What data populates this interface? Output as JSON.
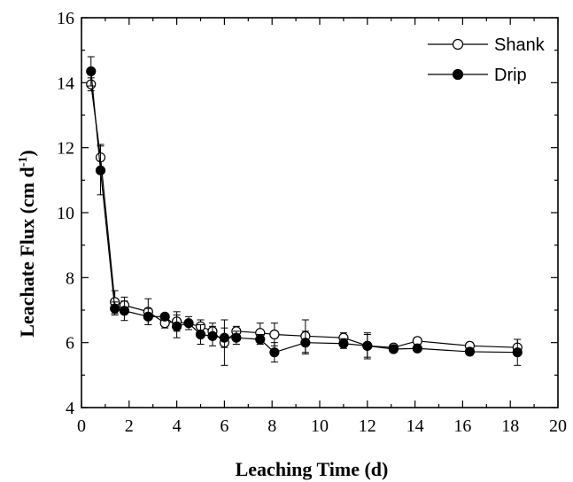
{
  "chart_data": {
    "type": "line",
    "xlabel": "Leaching Time (d)",
    "ylabel": "Leachate Flux (cm d",
    "ylabel_sup": "-1",
    "ylabel_close": ")",
    "xlim": [
      0,
      20
    ],
    "ylim": [
      4,
      16
    ],
    "xticks": [
      0,
      2,
      4,
      6,
      8,
      10,
      12,
      14,
      16,
      18,
      20
    ],
    "yticks": [
      4,
      6,
      8,
      10,
      12,
      14,
      16
    ],
    "grid": false,
    "legend_position": "top-right",
    "series": [
      {
        "name": "Shank",
        "marker": "open-circle",
        "points": [
          {
            "x": 0.4,
            "y": 13.95,
            "err": 0.2
          },
          {
            "x": 0.8,
            "y": 11.7,
            "err": 0.4
          },
          {
            "x": 1.4,
            "y": 7.25,
            "err": 0.35
          },
          {
            "x": 1.8,
            "y": 7.15,
            "err": 0.25
          },
          {
            "x": 2.8,
            "y": 6.95,
            "err": 0.4
          },
          {
            "x": 3.5,
            "y": 6.6,
            "err": 0.15
          },
          {
            "x": 4.0,
            "y": 6.65,
            "err": 0.3
          },
          {
            "x": 5.0,
            "y": 6.5,
            "err": 0.2
          },
          {
            "x": 5.5,
            "y": 6.35,
            "err": 0.25
          },
          {
            "x": 6.0,
            "y": 6.0,
            "err": 0.7
          },
          {
            "x": 6.5,
            "y": 6.35,
            "err": 0.15
          },
          {
            "x": 7.5,
            "y": 6.3,
            "err": 0.3
          },
          {
            "x": 8.1,
            "y": 6.25,
            "err": 0.35
          },
          {
            "x": 9.4,
            "y": 6.2,
            "err": 0.5
          },
          {
            "x": 11.0,
            "y": 6.15,
            "err": 0.15
          },
          {
            "x": 12.0,
            "y": 5.9,
            "err": 0.4
          },
          {
            "x": 13.1,
            "y": 5.85,
            "err": 0.1
          },
          {
            "x": 14.1,
            "y": 6.05,
            "err": 0.1
          },
          {
            "x": 16.3,
            "y": 5.9,
            "err": 0.1
          },
          {
            "x": 18.3,
            "y": 5.85,
            "err": 0.25
          }
        ]
      },
      {
        "name": "Drip",
        "marker": "filled-circle",
        "points": [
          {
            "x": 0.4,
            "y": 14.35,
            "err": 0.45
          },
          {
            "x": 0.8,
            "y": 11.3,
            "err": 0.75
          },
          {
            "x": 1.4,
            "y": 7.05,
            "err": 0.2
          },
          {
            "x": 1.8,
            "y": 6.98,
            "err": 0.3
          },
          {
            "x": 2.8,
            "y": 6.8,
            "err": 0.25
          },
          {
            "x": 3.5,
            "y": 6.8,
            "err": 0.1
          },
          {
            "x": 4.0,
            "y": 6.5,
            "err": 0.35
          },
          {
            "x": 4.5,
            "y": 6.6,
            "err": 0.2
          },
          {
            "x": 5.0,
            "y": 6.25,
            "err": 0.3
          },
          {
            "x": 5.5,
            "y": 6.2,
            "err": 0.3
          },
          {
            "x": 6.0,
            "y": 6.15,
            "err": 0.3
          },
          {
            "x": 6.5,
            "y": 6.15,
            "err": 0.2
          },
          {
            "x": 7.5,
            "y": 6.1,
            "err": 0.15
          },
          {
            "x": 8.1,
            "y": 5.7,
            "err": 0.3
          },
          {
            "x": 9.4,
            "y": 6.0,
            "err": 0.35
          },
          {
            "x": 11.0,
            "y": 5.97,
            "err": 0.15
          },
          {
            "x": 12.0,
            "y": 5.9,
            "err": 0.35
          },
          {
            "x": 13.1,
            "y": 5.8,
            "err": 0.1
          },
          {
            "x": 14.1,
            "y": 5.82,
            "err": 0.1
          },
          {
            "x": 16.3,
            "y": 5.72,
            "err": 0.1
          },
          {
            "x": 18.3,
            "y": 5.7,
            "err": 0.4
          }
        ]
      }
    ]
  }
}
